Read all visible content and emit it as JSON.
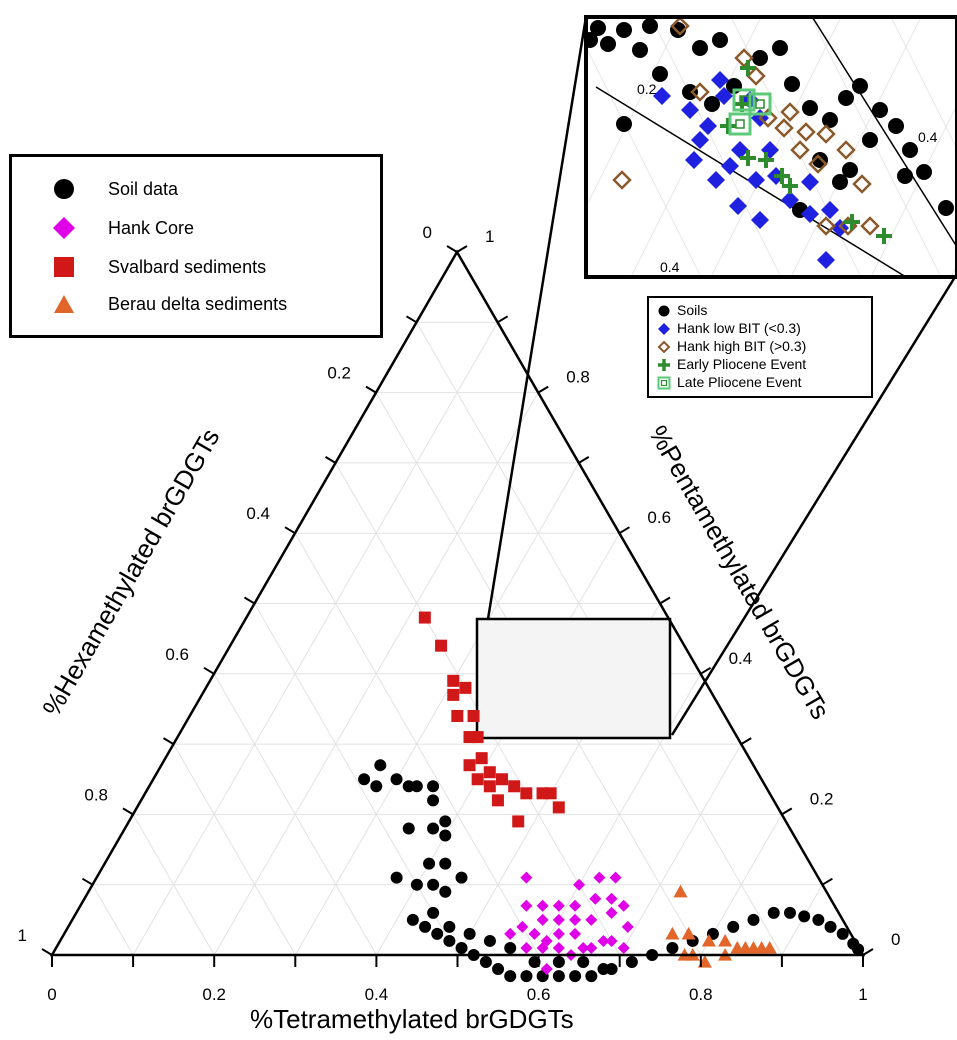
{
  "chart_data": {
    "type": "scatter",
    "subtype": "ternary",
    "axes": {
      "bottom": {
        "label": "%Tetramethylated brGDGTs",
        "ticks": [
          "0",
          "0.2",
          "0.4",
          "0.6",
          "0.8",
          "1"
        ]
      },
      "left": {
        "label": "%Hexamethylated brGDGTs",
        "ticks": [
          "0",
          "0.2",
          "0.4",
          "0.6",
          "0.8",
          "1"
        ]
      },
      "right": {
        "label": "%Pentamethylated brGDGTs",
        "ticks": [
          "1",
          "0.8",
          "0.6",
          "0.4",
          "0.2",
          "0"
        ]
      }
    },
    "grid": true,
    "legend": {
      "position": "top-left",
      "entries": [
        "Soil data",
        "Hank Core",
        "Svalbard sediments",
        "Berau delta sediments"
      ]
    },
    "colors": {
      "Soil data": "#000000",
      "Hank Core": "#e000e8",
      "Svalbard sediments": "#d01818",
      "Berau delta sediments": "#e2662a"
    },
    "series": [
      {
        "name": "Soil data",
        "marker": "circle",
        "points": [
          [
            0.42,
            0.53
          ],
          [
            0.44,
            0.52
          ],
          [
            0.46,
            0.51
          ],
          [
            0.48,
            0.5
          ],
          [
            0.5,
            0.49
          ],
          [
            0.52,
            0.48
          ],
          [
            0.54,
            0.47
          ],
          [
            0.56,
            0.46
          ],
          [
            0.58,
            0.45
          ],
          [
            0.6,
            0.43
          ],
          [
            0.62,
            0.41
          ],
          [
            0.64,
            0.39
          ],
          [
            0.66,
            0.37
          ],
          [
            0.68,
            0.35
          ],
          [
            0.7,
            0.32
          ],
          [
            0.72,
            0.29
          ],
          [
            0.74,
            0.26
          ],
          [
            0.76,
            0.23
          ],
          [
            0.78,
            0.2
          ],
          [
            0.8,
            0.17
          ],
          [
            0.82,
            0.14
          ],
          [
            0.84,
            0.11
          ],
          [
            0.86,
            0.08
          ],
          [
            0.88,
            0.06
          ],
          [
            0.9,
            0.045
          ],
          [
            0.92,
            0.03
          ],
          [
            0.94,
            0.02
          ],
          [
            0.96,
            0.01
          ],
          [
            0.98,
            0.004
          ],
          [
            0.99,
            0.002
          ],
          [
            0.44,
            0.5
          ],
          [
            0.47,
            0.49
          ],
          [
            0.5,
            0.47
          ],
          [
            0.53,
            0.45
          ],
          [
            0.56,
            0.43
          ],
          [
            0.6,
            0.41
          ],
          [
            0.63,
            0.38
          ],
          [
            0.66,
            0.35
          ],
          [
            0.69,
            0.33
          ],
          [
            0.4,
            0.5
          ],
          [
            0.42,
            0.48
          ],
          [
            0.44,
            0.47
          ],
          [
            0.42,
            0.45
          ],
          [
            0.45,
            0.44
          ],
          [
            0.4,
            0.43
          ],
          [
            0.39,
            0.42
          ],
          [
            0.37,
            0.52
          ],
          [
            0.4,
            0.47
          ],
          [
            0.35,
            0.47
          ],
          [
            0.38,
            0.44
          ],
          [
            0.36,
            0.42
          ],
          [
            0.33,
            0.43
          ],
          [
            0.3,
            0.45
          ],
          [
            0.27,
            0.46
          ],
          [
            0.28,
            0.48
          ],
          [
            0.32,
            0.44
          ],
          [
            0.35,
            0.41
          ],
          [
            0.26,
            0.49
          ]
        ]
      },
      {
        "name": "Hank Core",
        "marker": "diamond",
        "points": [
          [
            0.56,
            0.4
          ],
          [
            0.58,
            0.39
          ],
          [
            0.6,
            0.38
          ],
          [
            0.62,
            0.37
          ],
          [
            0.64,
            0.36
          ],
          [
            0.65,
            0.34
          ],
          [
            0.62,
            0.33
          ],
          [
            0.6,
            0.35
          ],
          [
            0.58,
            0.37
          ],
          [
            0.61,
            0.36
          ],
          [
            0.63,
            0.34
          ],
          [
            0.66,
            0.33
          ],
          [
            0.67,
            0.31
          ],
          [
            0.64,
            0.31
          ],
          [
            0.61,
            0.32
          ],
          [
            0.59,
            0.34
          ],
          [
            0.57,
            0.36
          ],
          [
            0.6,
            0.3
          ],
          [
            0.63,
            0.29
          ],
          [
            0.66,
            0.28
          ],
          [
            0.68,
            0.3
          ],
          [
            0.7,
            0.29
          ],
          [
            0.65,
            0.27
          ],
          [
            0.62,
            0.27
          ],
          [
            0.67,
            0.26
          ],
          [
            0.6,
            0.39
          ],
          [
            0.62,
            0.4
          ],
          [
            0.58,
            0.41
          ],
          [
            0.55,
            0.38
          ],
          [
            0.55,
            0.42
          ],
          [
            0.53,
            0.36
          ],
          [
            0.69,
            0.27
          ],
          [
            0.64,
            0.25
          ]
        ]
      },
      {
        "name": "Svalbard sediments",
        "marker": "square",
        "points": [
          [
            0.22,
            0.3
          ],
          [
            0.26,
            0.3
          ],
          [
            0.3,
            0.31
          ],
          [
            0.32,
            0.3
          ],
          [
            0.35,
            0.31
          ],
          [
            0.37,
            0.32
          ],
          [
            0.39,
            0.33
          ],
          [
            0.41,
            0.33
          ],
          [
            0.43,
            0.32
          ],
          [
            0.45,
            0.31
          ],
          [
            0.47,
            0.3
          ],
          [
            0.49,
            0.28
          ],
          [
            0.36,
            0.33
          ],
          [
            0.4,
            0.35
          ],
          [
            0.42,
            0.34
          ],
          [
            0.38,
            0.35
          ],
          [
            0.31,
            0.32
          ],
          [
            0.33,
            0.33
          ],
          [
            0.44,
            0.34
          ],
          [
            0.48,
            0.33
          ],
          [
            0.52,
            0.27
          ],
          [
            0.5,
            0.27
          ]
        ]
      },
      {
        "name": "Berau delta sediments",
        "marker": "triangle",
        "points": [
          [
            0.75,
            0.22
          ],
          [
            0.77,
            0.2
          ],
          [
            0.8,
            0.18
          ],
          [
            0.82,
            0.16
          ],
          [
            0.84,
            0.15
          ],
          [
            0.86,
            0.13
          ],
          [
            0.83,
            0.17
          ],
          [
            0.79,
            0.21
          ],
          [
            0.81,
            0.2
          ],
          [
            0.85,
            0.14
          ],
          [
            0.87,
            0.12
          ],
          [
            0.88,
            0.11
          ],
          [
            0.73,
            0.18
          ],
          [
            0.78,
            0.22
          ]
        ]
      }
    ],
    "highlight_box": {
      "label": "zoom inset",
      "range_tetra": [
        0.52,
        0.76
      ]
    },
    "inset": {
      "tick_labels": [
        "0.2",
        "0.4",
        "0.4"
      ],
      "legend": {
        "position": "below-inset",
        "entries": [
          {
            "name": "Soils",
            "marker": "circle",
            "color": "#000000"
          },
          {
            "name": "Hank low BIT (<0.3)",
            "marker": "diamond",
            "color": "#2020e0"
          },
          {
            "name": "Hank high BIT (>0.3)",
            "marker": "diamond-open",
            "color": "#8b5a2b"
          },
          {
            "name": "Early Pliocene Event",
            "marker": "plus",
            "color": "#2e8b2e"
          },
          {
            "name": "Late Pliocene Event",
            "marker": "square-open",
            "color": "#5cc87a"
          }
        ]
      }
    }
  },
  "legend_main": {
    "soil": "Soil data",
    "hank": "Hank Core",
    "svalbard": "Svalbard sediments",
    "berau": "Berau delta sediments"
  },
  "legend_inset": {
    "soils": "Soils",
    "low": "Hank low BIT (<0.3)",
    "high": "Hank high BIT (>0.3)",
    "early": "Early Pliocene Event",
    "late": "Late Pliocene Event"
  }
}
